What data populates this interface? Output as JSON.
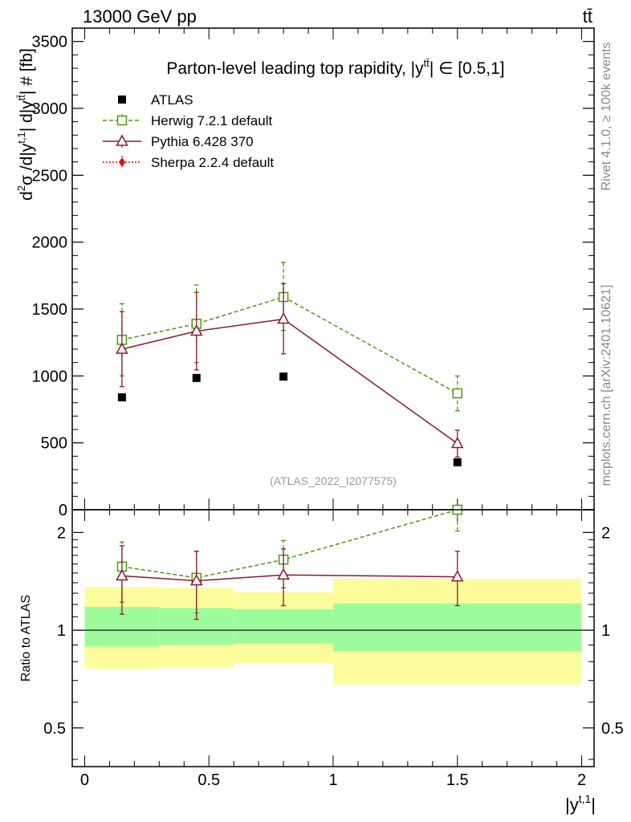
{
  "header": {
    "energy_label": "13000 GeV pp",
    "process_label": "tt̄"
  },
  "side_labels": {
    "rivet": "Rivet 4.1.0, ≥ 100k events",
    "mcplots": "mcplots.cern.ch [arXiv:2401.10621]"
  },
  "chart_data": [
    {
      "type": "line",
      "panel": "main",
      "title": "Parton-level leading top rapidity, |ȳ^{tt̄}| ∈ [0.5,1]",
      "title_parts": {
        "main": "Parton-level leading top rapidity, |y",
        "sup": "tt̄",
        "tail": "| ∈ [0.5,1]"
      },
      "watermark": "(ATLAS_2022_I2077575)",
      "ylabel": "d²σ /d|y^{t,1}| d|y^{tt̄}| # [fb]",
      "ylabel_parts": {
        "a": "d",
        "a_sup": "2",
        "b": "σ /d|y",
        "b_sup": "t,1",
        "c": "| d|y",
        "c_sup": "tt̄",
        "d": "| # [fb]"
      },
      "xlim": [
        -0.05,
        2.05
      ],
      "ylim": [
        0,
        3600
      ],
      "yticks": [
        "0",
        "500",
        "1000",
        "1500",
        "2000",
        "2500",
        "3000",
        "3500"
      ],
      "ytick_values": [
        0,
        500,
        1000,
        1500,
        2000,
        2500,
        3000,
        3500
      ],
      "legend_position": "top-left",
      "series": [
        {
          "name": "ATLAS",
          "marker": "square-filled",
          "color": "#000000",
          "line": "none",
          "x": [
            0.15,
            0.45,
            0.8,
            1.5
          ],
          "y": [
            840,
            985,
            995,
            355
          ]
        },
        {
          "name": "Herwig 7.2.1 default",
          "marker": "square-open",
          "color": "#4a9a0a",
          "line": "dashed",
          "x": [
            0.15,
            0.45,
            0.8,
            1.5
          ],
          "y": [
            1270,
            1390,
            1590,
            870
          ],
          "err_lo": [
            270,
            290,
            250,
            130
          ],
          "err_hi": [
            270,
            290,
            260,
            130
          ]
        },
        {
          "name": "Pythia 6.428 370",
          "marker": "triangle-open",
          "color": "#8b1a2b",
          "line": "solid",
          "x": [
            0.15,
            0.45,
            0.8,
            1.5
          ],
          "y": [
            1200,
            1335,
            1425,
            495
          ],
          "err_lo": [
            280,
            290,
            260,
            100
          ],
          "err_hi": [
            280,
            290,
            265,
            100
          ]
        },
        {
          "name": "Sherpa 2.2.4 default",
          "marker": "diamond-filled",
          "color": "#e0120b",
          "line": "dotted",
          "x": [],
          "y": []
        }
      ]
    },
    {
      "type": "line",
      "panel": "ratio",
      "ylabel": "Ratio to ATLAS",
      "xlabel": "|y^{t,1}|",
      "xlabel_parts": {
        "main": "|y",
        "sup": "t,1",
        "tail": "|"
      },
      "xlim": [
        -0.05,
        2.05
      ],
      "ylim": [
        0.38,
        2.35
      ],
      "yscale": "log",
      "xticks": [
        "0",
        "0.5",
        "1",
        "1.5",
        "2"
      ],
      "xtick_values": [
        0,
        0.5,
        1,
        1.5,
        2
      ],
      "yticks": [
        "0.5",
        "1",
        "2"
      ],
      "ytick_values": [
        0.5,
        1,
        2
      ],
      "bands": [
        {
          "x0": 0.0,
          "x1": 0.3,
          "inner": [
            0.89,
            1.18
          ],
          "outer": [
            0.76,
            1.36
          ]
        },
        {
          "x0": 0.3,
          "x1": 0.6,
          "inner": [
            0.9,
            1.17
          ],
          "outer": [
            0.77,
            1.35
          ]
        },
        {
          "x0": 0.6,
          "x1": 1.0,
          "inner": [
            0.91,
            1.16
          ],
          "outer": [
            0.79,
            1.31
          ]
        },
        {
          "x0": 1.0,
          "x1": 2.0,
          "inner": [
            0.86,
            1.21
          ],
          "outer": [
            0.68,
            1.44
          ]
        }
      ],
      "band_colors": {
        "inner": "#9cfc9c",
        "outer": "#fcfc9c"
      },
      "series": [
        {
          "name": "Herwig 7.2.1 default",
          "color": "#4a9a0a",
          "line": "dashed",
          "marker": "square-open",
          "x": [
            0.15,
            0.45,
            0.8,
            1.5
          ],
          "y": [
            1.57,
            1.45,
            1.65,
            2.35
          ],
          "err_lo": [
            0.35,
            0.32,
            0.3,
            0.33
          ],
          "err_hi": [
            0.3,
            0.3,
            0.24,
            0
          ]
        },
        {
          "name": "Pythia 6.428 370",
          "color": "#8b1a2b",
          "line": "solid",
          "marker": "triangle-open",
          "x": [
            0.15,
            0.45,
            0.8,
            1.5
          ],
          "y": [
            1.47,
            1.42,
            1.48,
            1.46
          ],
          "err_lo": [
            0.35,
            0.34,
            0.29,
            0.27
          ],
          "err_hi": [
            0.35,
            0.33,
            0.3,
            0.29
          ]
        }
      ]
    }
  ]
}
